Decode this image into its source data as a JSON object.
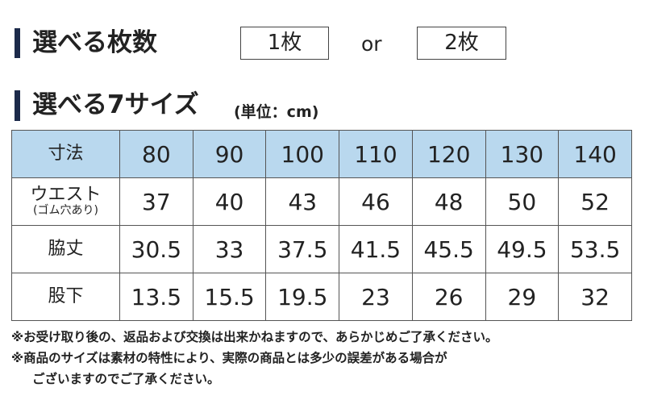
{
  "section1": {
    "title": "選べる枚数",
    "options": [
      "1枚",
      "2枚"
    ],
    "separator": "or"
  },
  "section2": {
    "title": "選べる7サイズ",
    "unit": "(単位：cm)"
  },
  "table": {
    "header": [
      "寸法",
      "80",
      "90",
      "100",
      "110",
      "120",
      "130",
      "140"
    ],
    "rows": [
      {
        "label": "ウエスト",
        "sublabel": "(ゴム穴あり)",
        "values": [
          "37",
          "40",
          "43",
          "46",
          "48",
          "50",
          "52"
        ]
      },
      {
        "label": "脇丈",
        "values": [
          "30.5",
          "33",
          "37.5",
          "41.5",
          "45.5",
          "49.5",
          "53.5"
        ]
      },
      {
        "label": "股下",
        "values": [
          "13.5",
          "15.5",
          "19.5",
          "23",
          "26",
          "29",
          "32"
        ]
      }
    ]
  },
  "notes": [
    "※お受け取り後の、返品および交換は出来かねますので、あらかじめご了承ください。",
    "※商品のサイズは素材の特性により、実際の商品とは多少の誤差がある場合が",
    "ございますのでご了承ください。"
  ]
}
